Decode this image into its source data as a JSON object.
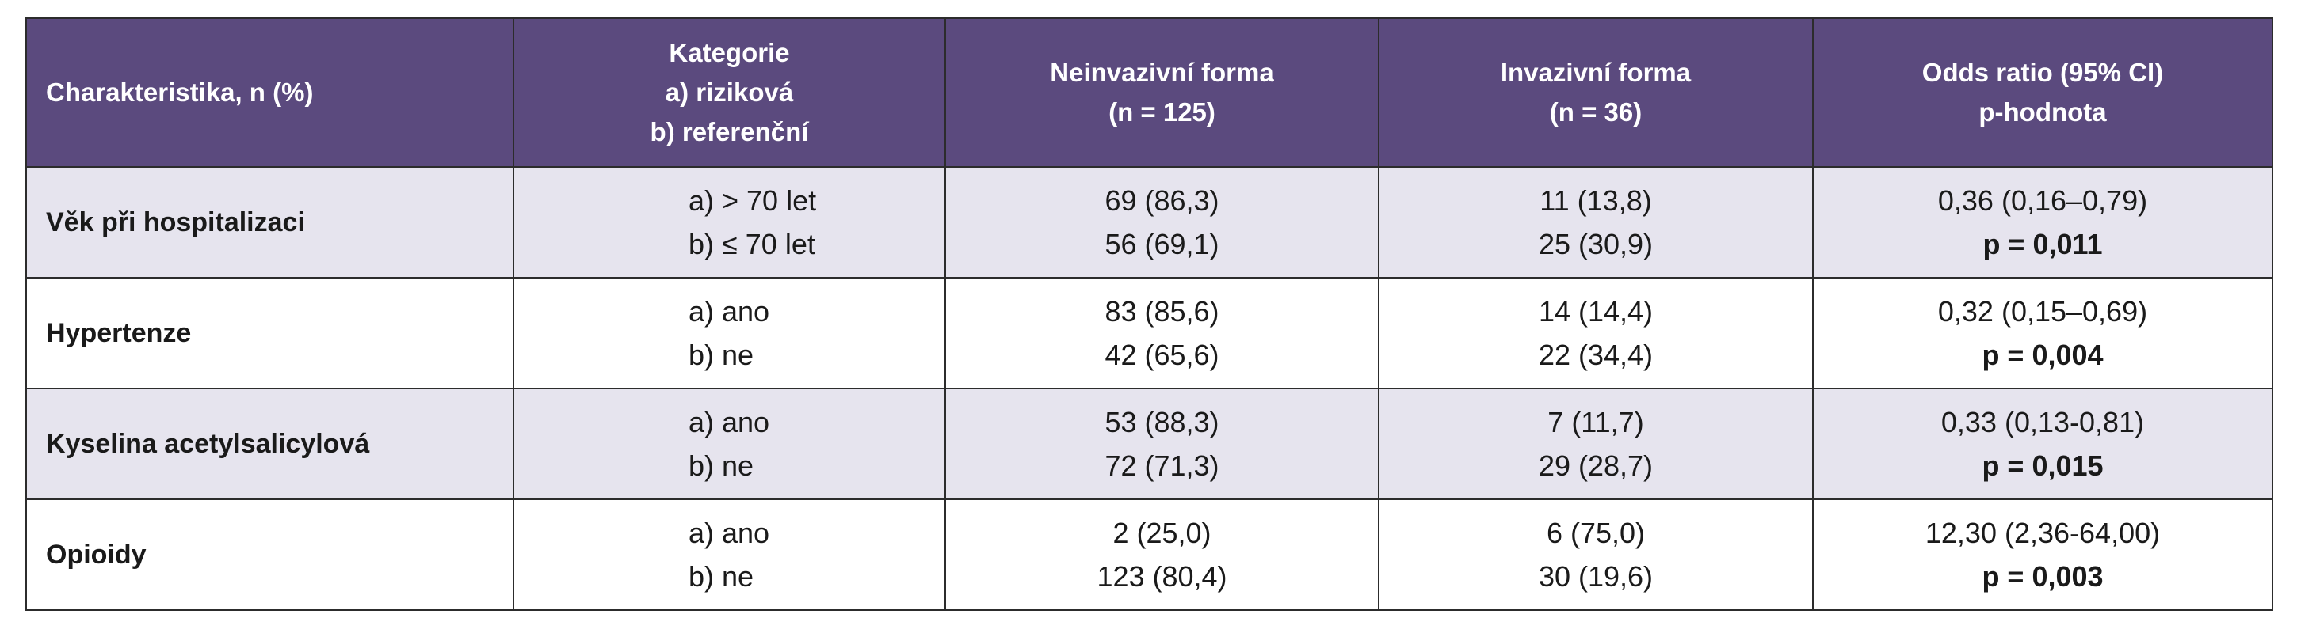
{
  "table": {
    "headers": {
      "characteristic": "Charakteristika, n (%)",
      "category": [
        "Kategorie",
        "a) riziková",
        "b) referenční"
      ],
      "noninvasive": [
        "Neinvazivní forma",
        "(n = 125)"
      ],
      "invasive": [
        "Invazivní forma",
        "(n = 36)"
      ],
      "odds": [
        "Odds ratio (95% CI)",
        "p-hodnota"
      ]
    },
    "rows": [
      {
        "label": "Věk při hospitalizaci",
        "cat_a": "a) > 70 let",
        "cat_b": "b) ≤ 70 let",
        "noninv_a": "69 (86,3)",
        "noninv_b": "56 (69,1)",
        "inv_a": "11 (13,8)",
        "inv_b": "25 (30,9)",
        "or": "0,36 (0,16–0,79)",
        "p": "p = 0,011"
      },
      {
        "label": "Hypertenze",
        "cat_a": "a) ano",
        "cat_b": "b) ne",
        "noninv_a": "83 (85,6)",
        "noninv_b": "42 (65,6)",
        "inv_a": "14 (14,4)",
        "inv_b": "22 (34,4)",
        "or": "0,32 (0,15–0,69)",
        "p": "p = 0,004"
      },
      {
        "label": "Kyselina acetylsalicylová",
        "cat_a": "a) ano",
        "cat_b": "b) ne",
        "noninv_a": "53 (88,3)",
        "noninv_b": "72 (71,3)",
        "inv_a": "7 (11,7)",
        "inv_b": "29 (28,7)",
        "or": "0,33 (0,13-0,81)",
        "p": "p = 0,015"
      },
      {
        "label": "Opioidy",
        "cat_a": "a) ano",
        "cat_b": "b) ne",
        "noninv_a": "2 (25,0)",
        "noninv_b": "123 (80,4)",
        "inv_a": "6 (75,0)",
        "inv_b": "30 (19,6)",
        "or": "12,30 (2,36-64,00)",
        "p": "p = 0,003"
      }
    ]
  }
}
